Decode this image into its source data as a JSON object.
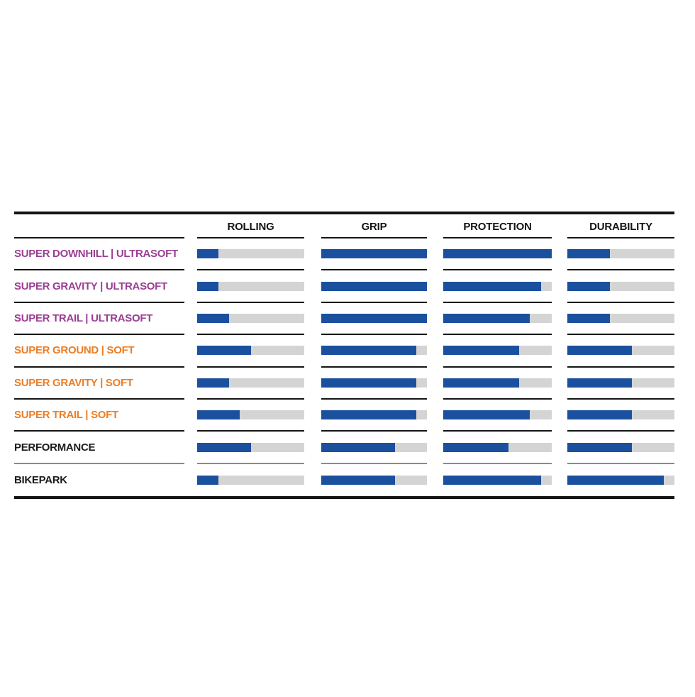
{
  "colors": {
    "bar_fill": "#1b509e",
    "bar_track": "#d4d4d4",
    "rule_black": "#141414",
    "rule_gray": "#8a8a8a",
    "label_purple": "#9a3d92",
    "label_orange": "#ed7d23",
    "label_black": "#1a1a1a",
    "header_text": "#141414",
    "background": "#ffffff"
  },
  "chart_data": {
    "type": "bar",
    "orientation": "horizontal",
    "value_range": [
      0,
      1
    ],
    "grid": "off",
    "legend": "none",
    "columns": [
      "ROLLING",
      "GRIP",
      "PROTECTION",
      "DURABILITY"
    ],
    "rows": [
      {
        "label": "SUPER DOWNHILL | ULTRASOFT",
        "label_color": "#9a3d92",
        "values": [
          0.2,
          1.0,
          1.0,
          0.4
        ]
      },
      {
        "label": "SUPER GRAVITY | ULTRASOFT",
        "label_color": "#9a3d92",
        "values": [
          0.2,
          1.0,
          0.9,
          0.4
        ]
      },
      {
        "label": "SUPER TRAIL | ULTRASOFT",
        "label_color": "#9a3d92",
        "values": [
          0.3,
          1.0,
          0.8,
          0.4
        ]
      },
      {
        "label": "SUPER GROUND | SOFT",
        "label_color": "#ed7d23",
        "values": [
          0.5,
          0.9,
          0.7,
          0.6
        ]
      },
      {
        "label": "SUPER GRAVITY | SOFT",
        "label_color": "#ed7d23",
        "values": [
          0.3,
          0.9,
          0.7,
          0.6
        ]
      },
      {
        "label": "SUPER TRAIL | SOFT",
        "label_color": "#ed7d23",
        "values": [
          0.4,
          0.9,
          0.8,
          0.6
        ]
      },
      {
        "label": "PERFORMANCE",
        "label_color": "#1a1a1a",
        "values": [
          0.5,
          0.7,
          0.6,
          0.6
        ]
      },
      {
        "label": "BIKEPARK",
        "label_color": "#1a1a1a",
        "values": [
          0.2,
          0.7,
          0.9,
          0.9
        ]
      }
    ]
  }
}
